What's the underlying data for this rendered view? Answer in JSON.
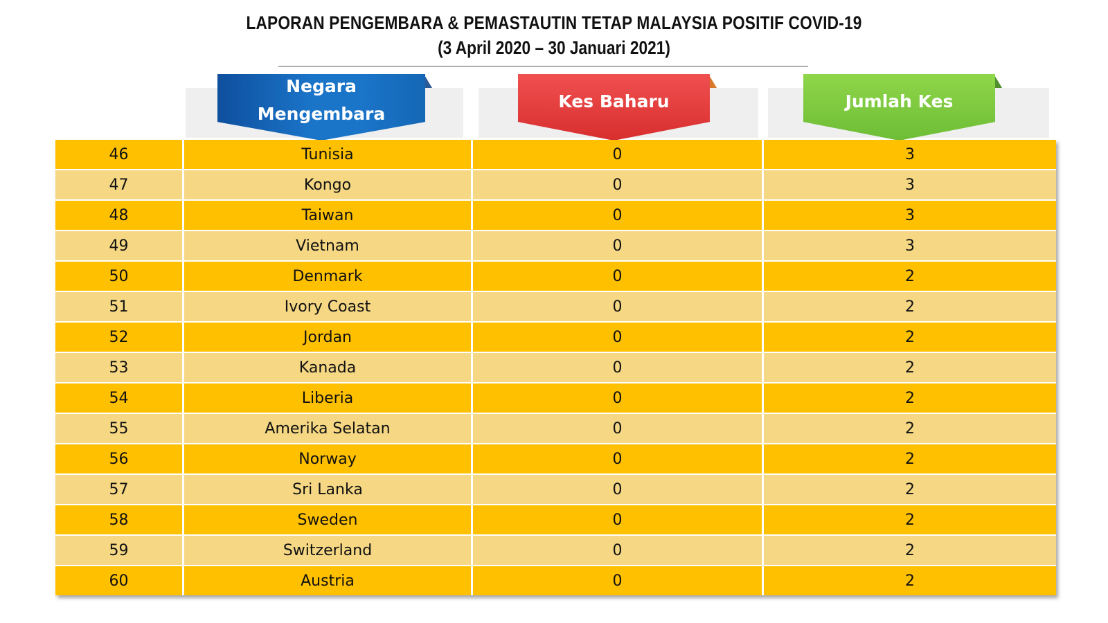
{
  "report": {
    "title": "LAPORAN PENGEMBARA & PEMASTAUTIN TETAP MALAYSIA POSITIF COVID-19",
    "subtitle": "(3 April 2020 –  30 Januari 2021)"
  },
  "headers": {
    "negara_line1": "Negara",
    "negara_line2": "Mengembara",
    "kes_baharu": "Kes Baharu",
    "jumlah_kes": "Jumlah Kes"
  },
  "colors": {
    "row_dark": "#ffc000",
    "row_light": "#f5d784",
    "header_blue": "#1a74c8",
    "header_red": "#e03a3a",
    "header_green": "#7dc93e"
  },
  "rows": [
    {
      "no": "46",
      "country": "Tunisia",
      "new_cases": "0",
      "total_cases": "3"
    },
    {
      "no": "47",
      "country": "Kongo",
      "new_cases": "0",
      "total_cases": "3"
    },
    {
      "no": "48",
      "country": "Taiwan",
      "new_cases": "0",
      "total_cases": "3"
    },
    {
      "no": "49",
      "country": "Vietnam",
      "new_cases": "0",
      "total_cases": "3"
    },
    {
      "no": "50",
      "country": "Denmark",
      "new_cases": "0",
      "total_cases": "2"
    },
    {
      "no": "51",
      "country": "Ivory Coast",
      "new_cases": "0",
      "total_cases": "2"
    },
    {
      "no": "52",
      "country": "Jordan",
      "new_cases": "0",
      "total_cases": "2"
    },
    {
      "no": "53",
      "country": "Kanada",
      "new_cases": "0",
      "total_cases": "2"
    },
    {
      "no": "54",
      "country": "Liberia",
      "new_cases": "0",
      "total_cases": "2"
    },
    {
      "no": "55",
      "country": "Amerika Selatan",
      "new_cases": "0",
      "total_cases": "2"
    },
    {
      "no": "56",
      "country": "Norway",
      "new_cases": "0",
      "total_cases": "2"
    },
    {
      "no": "57",
      "country": "Sri Lanka",
      "new_cases": "0",
      "total_cases": "2"
    },
    {
      "no": "58",
      "country": "Sweden",
      "new_cases": "0",
      "total_cases": "2"
    },
    {
      "no": "59",
      "country": "Switzerland",
      "new_cases": "0",
      "total_cases": "2"
    },
    {
      "no": "60",
      "country": "Austria",
      "new_cases": "0",
      "total_cases": "2"
    }
  ]
}
